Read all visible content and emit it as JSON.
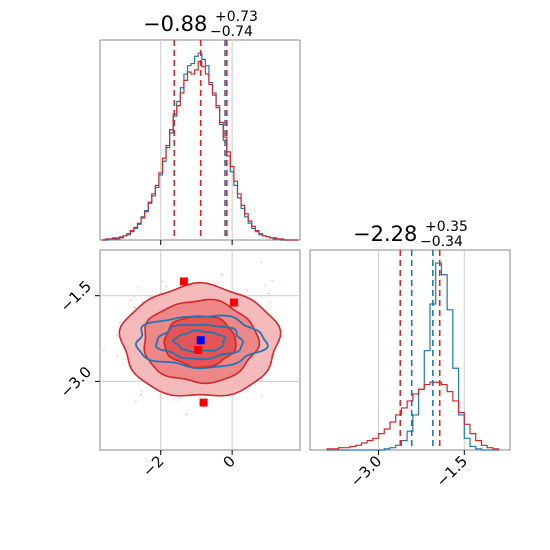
{
  "chart_data": [
    {
      "type": "histogram",
      "panel": "marginal-param-1",
      "title_main": "−0.88",
      "title_sup": "+0.73",
      "title_sub": "−0.74",
      "xlim": [
        -3.7,
        1.9
      ],
      "grid": true,
      "bins_x": [
        -3.6,
        -3.5,
        -3.4,
        -3.3,
        -3.2,
        -3.1,
        -3.0,
        -2.9,
        -2.8,
        -2.7,
        -2.6,
        -2.5,
        -2.4,
        -2.3,
        -2.2,
        -2.1,
        -2.0,
        -1.9,
        -1.8,
        -1.7,
        -1.6,
        -1.5,
        -1.4,
        -1.3,
        -1.2,
        -1.1,
        -1.0,
        -0.9,
        -0.8,
        -0.7,
        -0.6,
        -0.5,
        -0.4,
        -0.3,
        -0.2,
        -0.1,
        0.0,
        0.1,
        0.2,
        0.3,
        0.4,
        0.5,
        0.6,
        0.7,
        0.8,
        0.9,
        1.0,
        1.1,
        1.2,
        1.3,
        1.4,
        1.5,
        1.6,
        1.7,
        1.8
      ],
      "series": [
        {
          "color": "#1f77b4",
          "values": [
            0,
            0,
            1,
            2,
            1,
            2,
            4,
            5,
            8,
            11,
            15,
            22,
            28,
            35,
            42,
            50,
            62,
            75,
            88,
            102,
            118,
            132,
            145,
            158,
            166,
            168,
            175,
            178,
            172,
            166,
            150,
            140,
            128,
            110,
            95,
            80,
            65,
            52,
            40,
            30,
            22,
            16,
            11,
            8,
            5,
            4,
            3,
            2,
            1,
            1,
            0,
            0,
            0,
            0,
            0
          ]
        },
        {
          "color": "#d62728",
          "values": [
            0,
            1,
            1,
            1,
            2,
            3,
            4,
            6,
            9,
            12,
            16,
            21,
            27,
            36,
            44,
            52,
            64,
            78,
            90,
            105,
            120,
            128,
            140,
            152,
            160,
            158,
            162,
            170,
            165,
            158,
            148,
            138,
            126,
            112,
            98,
            84,
            70,
            56,
            44,
            33,
            25,
            18,
            13,
            9,
            6,
            4,
            3,
            2,
            2,
            1,
            1,
            0,
            0,
            0,
            0
          ]
        }
      ],
      "lines": [
        {
          "x": -1.62,
          "color": "#d62728",
          "style": "dashed"
        },
        {
          "x": -0.88,
          "color": "#d62728",
          "style": "dashed"
        },
        {
          "x": -0.15,
          "color": "#d62728",
          "style": "dashed"
        },
        {
          "x": -0.2,
          "color": "#1f77b4",
          "style": "dashed"
        }
      ]
    },
    {
      "type": "contour",
      "panel": "joint",
      "xlim": [
        -3.7,
        1.9
      ],
      "ylim": [
        -4.2,
        -0.7
      ],
      "x_ticks": [
        -2,
        0
      ],
      "x_tick_labels": [
        "−2",
        "0"
      ],
      "y_ticks": [
        -1.5,
        -3.0
      ],
      "y_tick_labels": [
        "−1.5",
        "−3.0"
      ],
      "grid": true,
      "contours": [
        {
          "color": "#d62728",
          "center": [
            -0.9,
            -2.3
          ],
          "levels": [
            [
              2.2,
              0.98
            ],
            [
              1.6,
              0.72
            ],
            [
              1.0,
              0.45
            ]
          ]
        },
        {
          "color": "#1f77b4",
          "center": [
            -0.9,
            -2.3
          ],
          "levels": [
            [
              1.8,
              0.45
            ],
            [
              1.2,
              0.3
            ],
            [
              0.7,
              0.18
            ]
          ]
        }
      ],
      "markers": [
        {
          "x": -1.35,
          "y": -1.25,
          "color": "#ff0000"
        },
        {
          "x": 0.05,
          "y": -1.62,
          "color": "#ff0000"
        },
        {
          "x": -0.8,
          "y": -3.37,
          "color": "#ff0000"
        },
        {
          "x": -0.95,
          "y": -2.45,
          "color": "#ff0000"
        },
        {
          "x": -0.88,
          "y": -2.28,
          "color": "#0000ff"
        }
      ]
    },
    {
      "type": "histogram",
      "panel": "marginal-param-2",
      "title_main": "−2.28",
      "title_sup": "+0.35",
      "title_sub": "−0.34",
      "xlim": [
        -4.2,
        -0.7
      ],
      "x_ticks": [
        -3.0,
        -1.5
      ],
      "x_tick_labels": [
        "−3.0",
        "−1.5"
      ],
      "grid": true,
      "bins_x": [
        -3.85,
        -3.75,
        -3.65,
        -3.55,
        -3.45,
        -3.35,
        -3.25,
        -3.15,
        -3.05,
        -2.95,
        -2.85,
        -2.75,
        -2.65,
        -2.55,
        -2.45,
        -2.35,
        -2.25,
        -2.15,
        -2.05,
        -1.95,
        -1.85,
        -1.75,
        -1.65,
        -1.55,
        -1.45,
        -1.35,
        -1.25,
        -1.15,
        -1.05,
        -0.95
      ],
      "series": [
        {
          "color": "#1f77b4",
          "values": [
            0,
            0,
            0,
            0,
            0,
            0,
            0,
            0,
            0,
            0,
            1,
            2,
            4,
            8,
            16,
            30,
            52,
            85,
            125,
            160,
            150,
            120,
            70,
            30,
            10,
            3,
            1,
            0,
            0,
            0
          ]
        },
        {
          "color": "#d62728",
          "values": [
            1,
            1,
            2,
            2,
            3,
            4,
            6,
            8,
            10,
            14,
            18,
            24,
            30,
            36,
            42,
            48,
            52,
            56,
            58,
            58,
            56,
            50,
            42,
            32,
            22,
            14,
            8,
            4,
            2,
            1
          ]
        }
      ],
      "lines": [
        {
          "x": -2.62,
          "color": "#d62728",
          "style": "dashed"
        },
        {
          "x": -1.93,
          "color": "#d62728",
          "style": "dashed"
        },
        {
          "x": -2.42,
          "color": "#1f77b4",
          "style": "dashed"
        },
        {
          "x": -2.05,
          "color": "#1f77b4",
          "style": "dashed"
        }
      ]
    }
  ]
}
